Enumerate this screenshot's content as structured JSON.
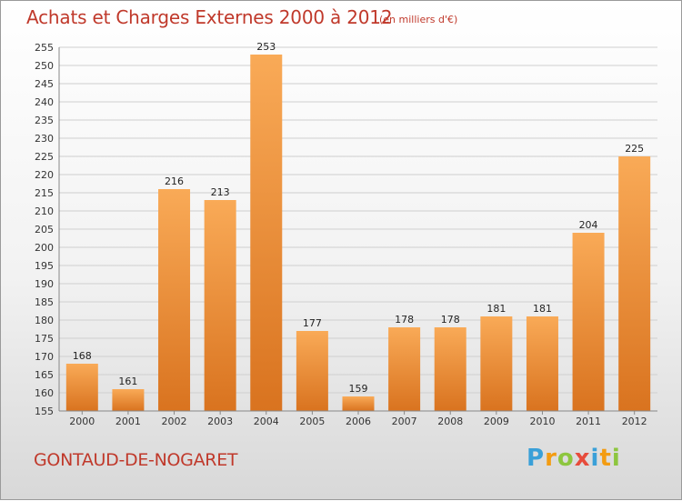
{
  "title": "Achats et Charges Externes 2000 à 2012",
  "subtitle": "(en milliers d'€)",
  "city": "GONTAUD-DE-NOGARET",
  "logo": {
    "letters": [
      "P",
      "r",
      "o",
      "x",
      "i",
      "t",
      "i"
    ],
    "colors": [
      "#3aa0d8",
      "#f39c12",
      "#8dc63f",
      "#e74c3c",
      "#3aa0d8",
      "#f39c12",
      "#8dc63f"
    ]
  },
  "colors": {
    "bar_light": "#f9aa57",
    "bar_dark": "#d9731f",
    "title": "#c0392b"
  },
  "chart_data": {
    "type": "bar",
    "title": "Achats et Charges Externes 2000 à 2012",
    "subtitle": "(en milliers d'€)",
    "categories": [
      "2000",
      "2001",
      "2002",
      "2003",
      "2004",
      "2005",
      "2006",
      "2007",
      "2008",
      "2009",
      "2010",
      "2011",
      "2012"
    ],
    "values": [
      168,
      161,
      216,
      213,
      253,
      177,
      159,
      178,
      178,
      181,
      181,
      204,
      225
    ],
    "xlabel": "",
    "ylabel": "",
    "ylim": [
      155,
      255
    ],
    "yticks": [
      155,
      160,
      165,
      170,
      175,
      180,
      185,
      190,
      195,
      200,
      205,
      210,
      215,
      220,
      225,
      230,
      235,
      240,
      245,
      250,
      255
    ],
    "grid": true,
    "legend": "none"
  }
}
